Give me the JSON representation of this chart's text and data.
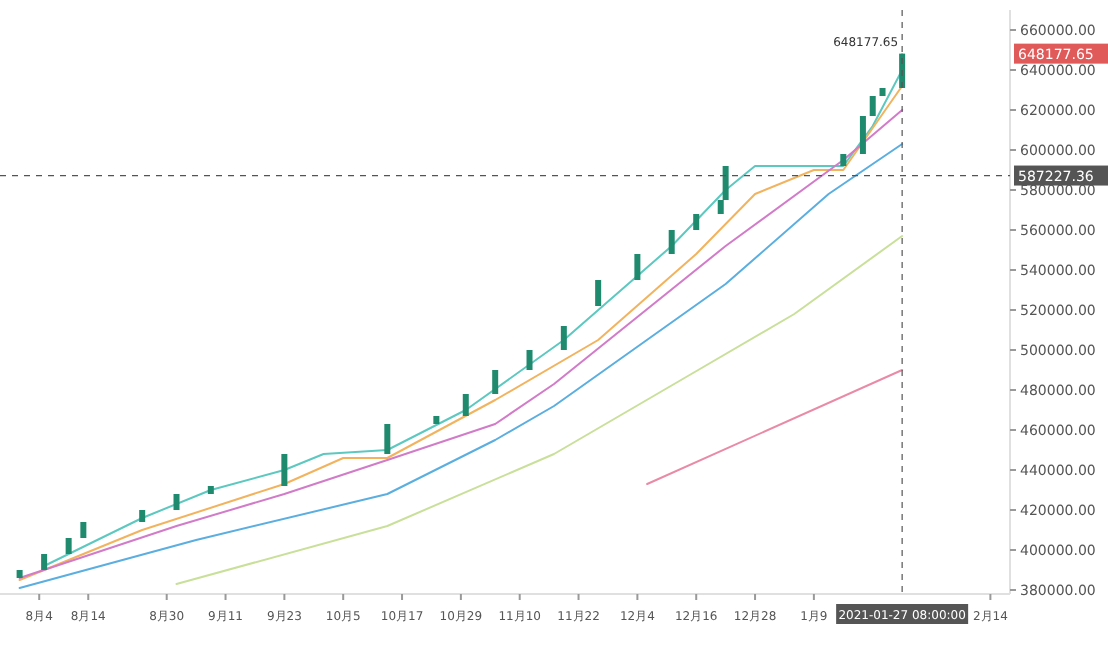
{
  "chart_data": {
    "type": "candlestick",
    "color": "#1f8a6e",
    "x": [
      "2020-07-31",
      "2020-08-05",
      "2020-08-10",
      "2020-08-13",
      "2020-08-25",
      "2020-09-01",
      "2020-09-08",
      "2020-09-23",
      "2020-10-14",
      "2020-10-24",
      "2020-10-30",
      "2020-11-05",
      "2020-11-12",
      "2020-11-19",
      "2020-11-26",
      "2020-12-04",
      "2020-12-11",
      "2020-12-16",
      "2020-12-21",
      "2020-12-22",
      "2021-01-15",
      "2021-01-19",
      "2021-01-21",
      "2021-01-23",
      "2021-01-27"
    ],
    "ohlc": [
      [
        386000,
        390000,
        386000,
        390000
      ],
      [
        390000,
        398000,
        390000,
        398000
      ],
      [
        398000,
        406000,
        398000,
        406000
      ],
      [
        406000,
        414000,
        406000,
        414000
      ],
      [
        414000,
        420000,
        414000,
        420000
      ],
      [
        420000,
        428000,
        420000,
        428000
      ],
      [
        428000,
        432000,
        428000,
        432000
      ],
      [
        432000,
        448000,
        432000,
        448000
      ],
      [
        448000,
        463000,
        448000,
        463000
      ],
      [
        463000,
        467000,
        463000,
        467000
      ],
      [
        467000,
        478000,
        467000,
        478000
      ],
      [
        478000,
        490000,
        478000,
        490000
      ],
      [
        490000,
        500000,
        490000,
        500000
      ],
      [
        500000,
        512000,
        500000,
        512000
      ],
      [
        522000,
        535000,
        522000,
        535000
      ],
      [
        535000,
        548000,
        535000,
        548000
      ],
      [
        548000,
        560000,
        548000,
        560000
      ],
      [
        560000,
        568000,
        560000,
        568000
      ],
      [
        568000,
        575000,
        568000,
        575000
      ],
      [
        575000,
        592000,
        575000,
        592000
      ],
      [
        592000,
        598000,
        592000,
        598000
      ],
      [
        598000,
        617000,
        598000,
        617000
      ],
      [
        617000,
        627000,
        617000,
        627000
      ],
      [
        627000,
        631000,
        627000,
        631000
      ],
      [
        631000,
        648177.65,
        631000,
        648177.65
      ]
    ],
    "series": [
      {
        "type": "line",
        "color": "#5cc8c0",
        "x": [
          "2020-08-05",
          "2020-08-25",
          "2020-09-08",
          "2020-09-23",
          "2020-10-01",
          "2020-10-14",
          "2020-10-30",
          "2020-11-19",
          "2020-12-11",
          "2020-12-22",
          "2020-12-28",
          "2021-01-15",
          "2021-01-21",
          "2021-01-27"
        ],
        "values": [
          392000,
          416000,
          430000,
          440000,
          448000,
          450000,
          470000,
          505000,
          552000,
          580000,
          592000,
          592000,
          612000,
          640000
        ]
      },
      {
        "type": "line",
        "color": "#f2b35e",
        "x": [
          "2020-07-31",
          "2020-08-25",
          "2020-09-23",
          "2020-10-05",
          "2020-10-14",
          "2020-11-05",
          "2020-11-26",
          "2020-12-16",
          "2020-12-28",
          "2021-01-09",
          "2021-01-15",
          "2021-01-27"
        ],
        "values": [
          385000,
          410000,
          433000,
          446000,
          446000,
          475000,
          505000,
          548000,
          578000,
          590000,
          590000,
          632000
        ]
      },
      {
        "type": "line",
        "color": "#d27bc9",
        "x": [
          "2020-07-31",
          "2020-09-01",
          "2020-09-23",
          "2020-10-14",
          "2020-11-05",
          "2020-11-17",
          "2020-12-22",
          "2021-01-15",
          "2021-01-27"
        ],
        "values": [
          386000,
          412000,
          428000,
          445000,
          463000,
          483000,
          552000,
          595000,
          620000
        ]
      },
      {
        "type": "line",
        "color": "#5aaee0",
        "x": [
          "2020-07-31",
          "2020-09-05",
          "2020-10-14",
          "2020-11-05",
          "2020-11-17",
          "2020-12-22",
          "2021-01-12",
          "2021-01-27"
        ],
        "values": [
          381000,
          405000,
          428000,
          455000,
          472000,
          533000,
          578000,
          603000
        ]
      },
      {
        "type": "line",
        "color": "#c9e09a",
        "x": [
          "2020-09-01",
          "2020-10-14",
          "2020-11-17",
          "2020-12-15",
          "2021-01-05",
          "2021-01-27"
        ],
        "values": [
          383000,
          412000,
          448000,
          488000,
          518000,
          557000
        ]
      },
      {
        "type": "line",
        "color": "#e98ba6",
        "x": [
          "2020-12-06",
          "2021-01-27"
        ],
        "values": [
          433000,
          490000
        ]
      }
    ],
    "xlim": [
      "2020-07-27",
      "2021-02-18"
    ],
    "xticks": [
      {
        "value": "2020-08-04",
        "label": "8月4"
      },
      {
        "value": "2020-08-14",
        "label": "8月14"
      },
      {
        "value": "2020-08-30",
        "label": "8月30"
      },
      {
        "value": "2020-09-11",
        "label": "9月11"
      },
      {
        "value": "2020-09-23",
        "label": "9月23"
      },
      {
        "value": "2020-10-05",
        "label": "10月5"
      },
      {
        "value": "2020-10-17",
        "label": "10月17"
      },
      {
        "value": "2020-10-29",
        "label": "10月29"
      },
      {
        "value": "2020-11-10",
        "label": "11月10"
      },
      {
        "value": "2020-11-22",
        "label": "11月22"
      },
      {
        "value": "2020-12-04",
        "label": "12月4"
      },
      {
        "value": "2020-12-16",
        "label": "12月16"
      },
      {
        "value": "2020-12-28",
        "label": "12月28"
      },
      {
        "value": "2021-01-09",
        "label": "1月9"
      },
      {
        "value": "2021-02-14",
        "label": "2月14"
      }
    ],
    "ylim": [
      378000,
      670000
    ],
    "yticks": [
      {
        "value": 380000,
        "label": "380000.00"
      },
      {
        "value": 400000,
        "label": "400000.00"
      },
      {
        "value": 420000,
        "label": "420000.00"
      },
      {
        "value": 440000,
        "label": "440000.00"
      },
      {
        "value": 460000,
        "label": "460000.00"
      },
      {
        "value": 480000,
        "label": "480000.00"
      },
      {
        "value": 500000,
        "label": "500000.00"
      },
      {
        "value": 520000,
        "label": "520000.00"
      },
      {
        "value": 540000,
        "label": "540000.00"
      },
      {
        "value": 560000,
        "label": "560000.00"
      },
      {
        "value": 580000,
        "label": "580000.00"
      },
      {
        "value": 600000,
        "label": "600000.00"
      },
      {
        "value": 620000,
        "label": "620000.00"
      },
      {
        "value": 640000,
        "label": "640000.00"
      },
      {
        "value": 660000,
        "label": "660000.00"
      }
    ],
    "ref_lines": [
      {
        "axis": "y",
        "value": 587227.36,
        "label": "587227.36",
        "color": "#555555",
        "line_style": "dashed"
      },
      {
        "axis": "x",
        "value": "2021-01-27",
        "label": "2021-01-27 08:00:00",
        "color": "#555555",
        "line_style": "dashed"
      }
    ],
    "annotations": [
      {
        "text": "648177.65",
        "x": "2021-01-27",
        "y": 648177.65
      }
    ]
  }
}
